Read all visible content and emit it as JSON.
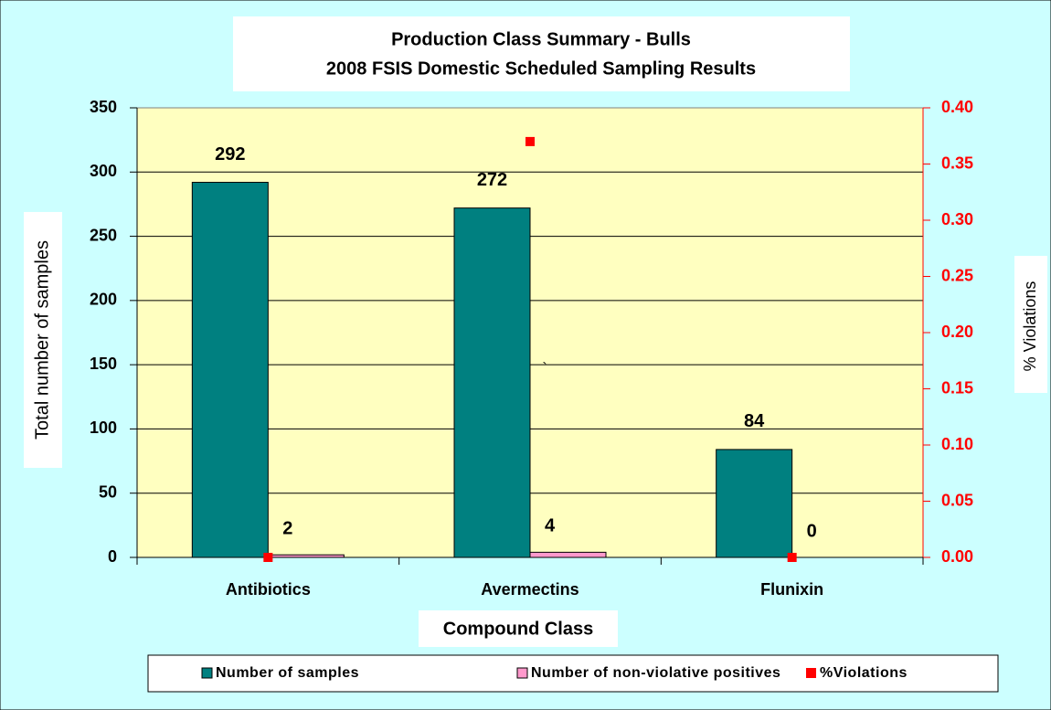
{
  "chart_data": {
    "type": "bar",
    "title": "Production Class Summary - Bulls",
    "subtitle": "2008 FSIS Domestic Scheduled Sampling Results",
    "x_label": "Compound Class",
    "y_label": "Total number of samples",
    "y2_label": "% Violations",
    "annotation": "`",
    "categories": [
      "Antibiotics",
      "Avermectins",
      "Flunixin"
    ],
    "series": [
      {
        "name": "Number of samples",
        "color": "#008080",
        "values": [
          292,
          272,
          84
        ]
      },
      {
        "name": "Number of non-violative positives",
        "color": "#ff99cc",
        "values": [
          2,
          4,
          0
        ]
      },
      {
        "name": "%Violations",
        "color": "#ff0000",
        "values": [
          0,
          0.37,
          0
        ],
        "axis": "y2",
        "marker": "square"
      }
    ],
    "ylim": [
      0,
      350
    ],
    "yticks": [
      0,
      50,
      100,
      150,
      200,
      250,
      300,
      350
    ],
    "y2lim": [
      0,
      0.4
    ],
    "y2ticks": [
      {
        "value": 0,
        "label": "0.00"
      },
      0.05,
      {
        "value": 0.1,
        "label": "0.10"
      },
      0.15,
      {
        "value": 0.2,
        "label": "0.20"
      },
      0.25,
      {
        "value": 0.3,
        "label": "0.30"
      },
      0.35,
      {
        "value": 0.4,
        "label": "0.40"
      }
    ],
    "grid": true,
    "legend": "bottom"
  }
}
